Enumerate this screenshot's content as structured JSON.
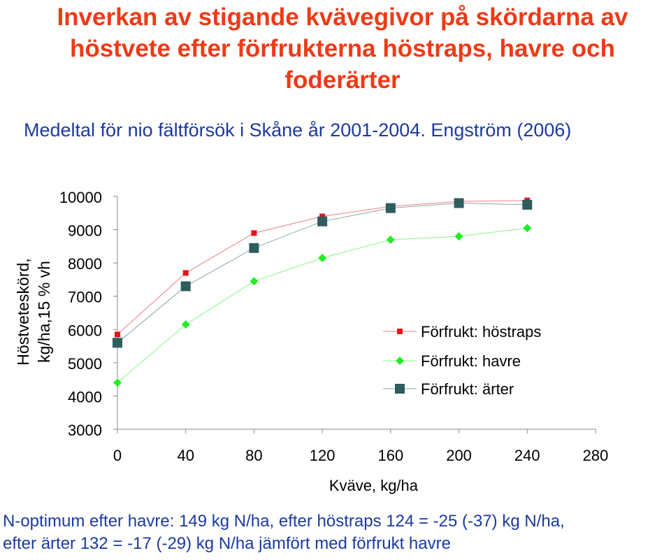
{
  "title_line1": "Inverkan av stigande kvävegivor på skördarna av",
  "title_line2": "höstvete efter förfrukterna höstraps, havre och",
  "title_line3": "foderärter",
  "subtitle": "Medeltal för nio fältförsök i Skåne år 2001-2004. Engström (2006)",
  "footer_line1": "N-optimum efter havre: 149 kg N/ha, efter höstraps 124 = -25 (-37) kg N/ha,",
  "footer_line2": "efter ärter 132 = -17 (-29) kg N/ha jämfört med förfrukt havre",
  "colors": {
    "title": "#ee3a16",
    "text_blue": "#1b3aa0",
    "hostraps": "#e8141a",
    "havre": "#22ee22",
    "arter": "#2f5c5c"
  },
  "chart_data": {
    "type": "line",
    "title": "",
    "ylabel_line1": "Höstveteskörd,",
    "ylabel_line2": "kg/ha,15 % vh",
    "xlabel": "Kväve, kg/ha",
    "xlim": [
      0,
      280
    ],
    "ylim": [
      3000,
      10000
    ],
    "xticks": [
      0,
      40,
      80,
      120,
      160,
      200,
      240,
      280
    ],
    "yticks": [
      10000,
      9000,
      8000,
      7000,
      6000,
      5000,
      4000,
      3000
    ],
    "grid": false,
    "legend_position": "right",
    "x": [
      0,
      40,
      80,
      120,
      160,
      200,
      240
    ],
    "series": [
      {
        "name": "Förfrukt: höstraps",
        "marker": "square-small",
        "color": "#e8141a",
        "values": [
          5850,
          7700,
          8900,
          9400,
          9700,
          9850,
          9880
        ]
      },
      {
        "name": "Förfrukt: havre",
        "marker": "diamond",
        "color": "#22ee22",
        "values": [
          4400,
          6150,
          7450,
          8150,
          8700,
          8800,
          9050
        ]
      },
      {
        "name": "Förfrukt: ärter",
        "marker": "square-large",
        "color": "#2f5c5c",
        "values": [
          5600,
          7300,
          8450,
          9250,
          9650,
          9800,
          9750
        ]
      }
    ]
  }
}
